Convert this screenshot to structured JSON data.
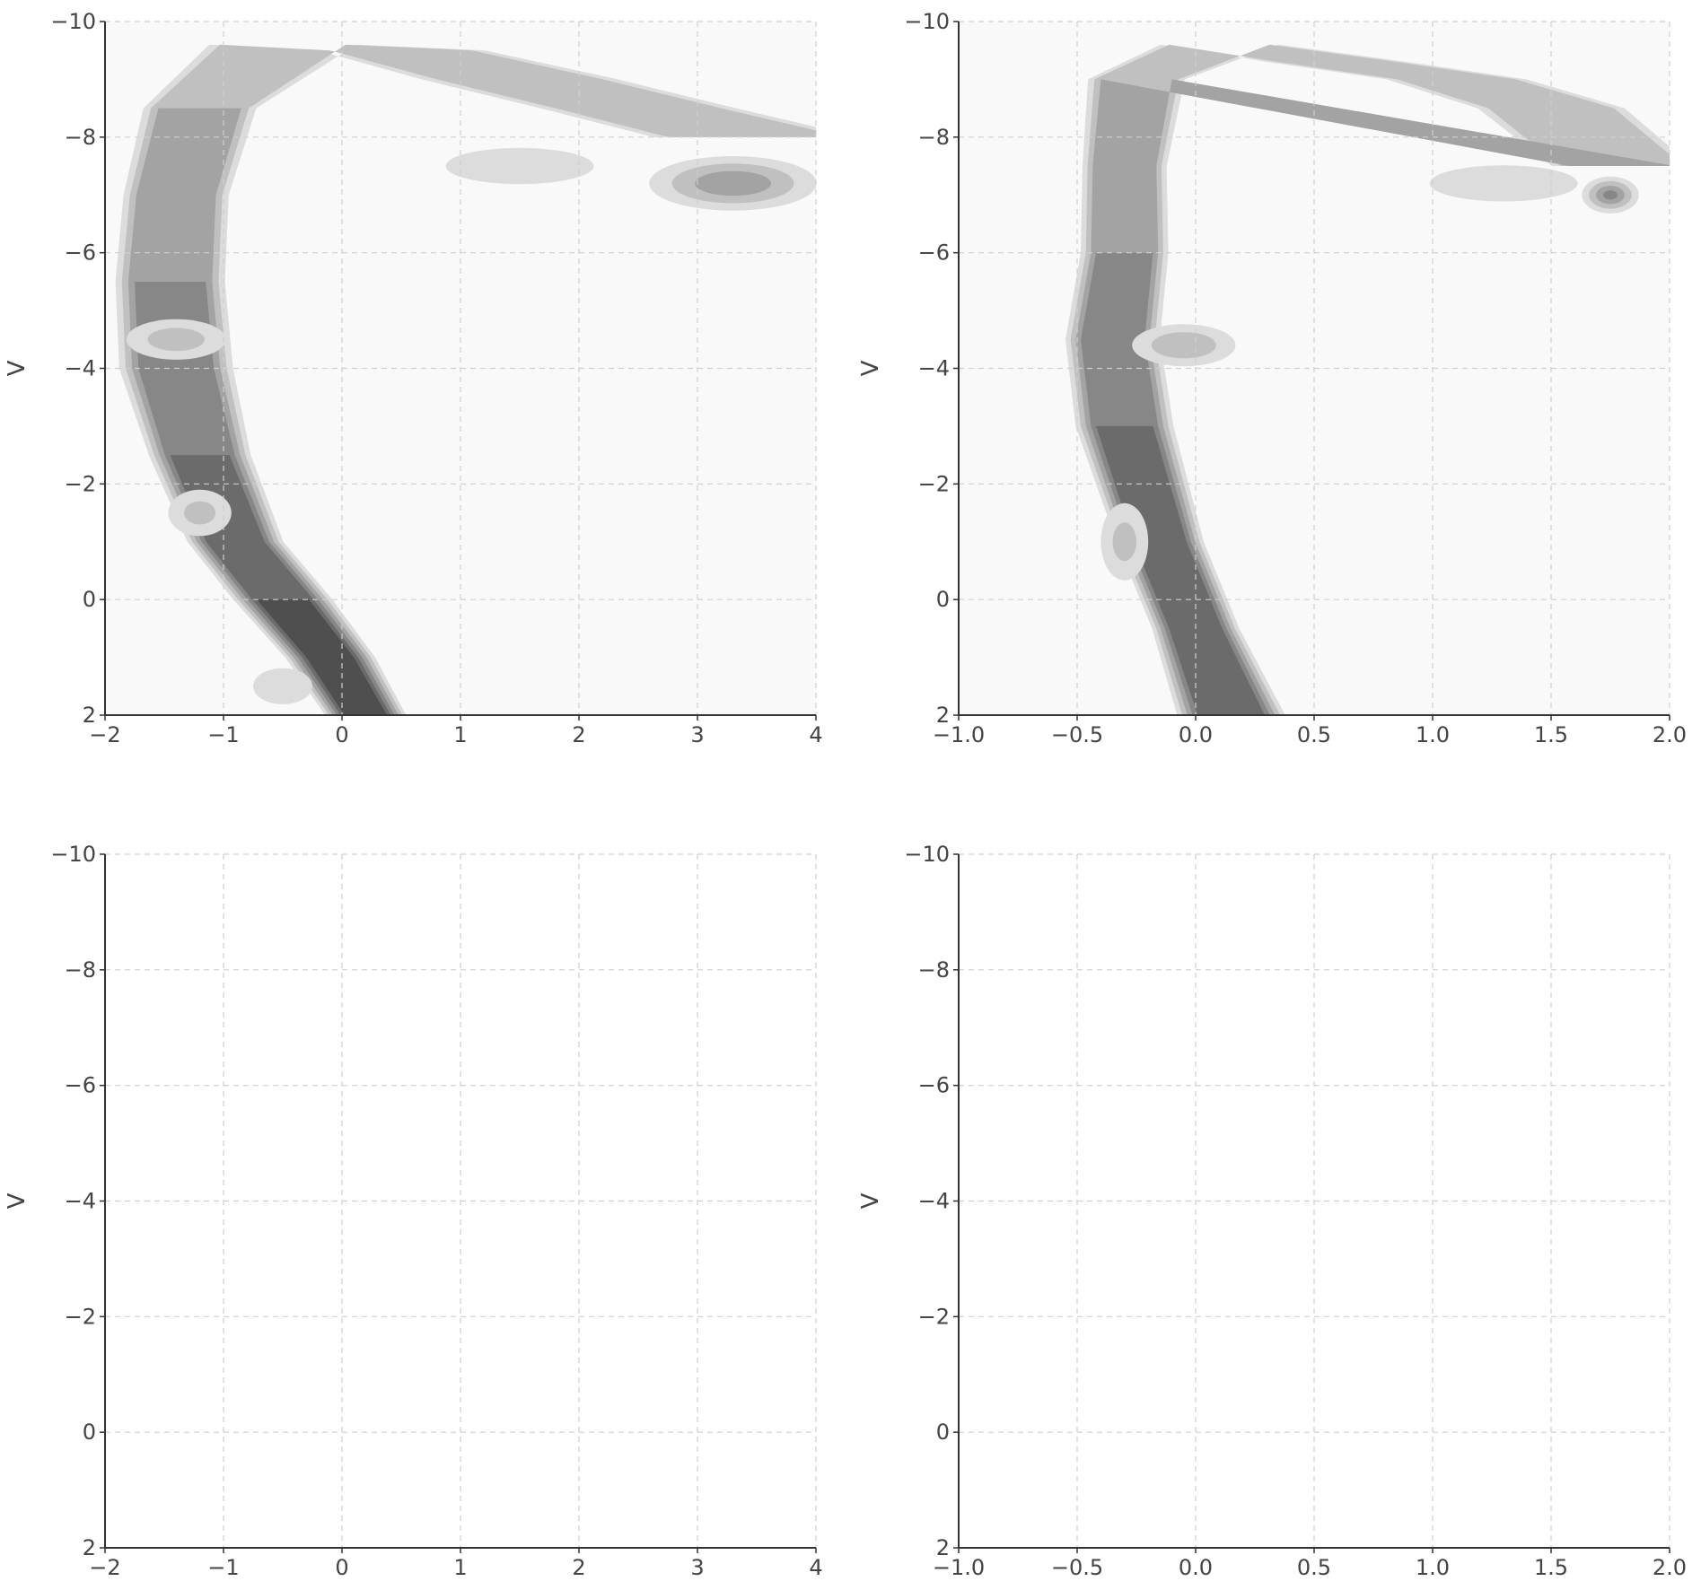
{
  "chart_data": [
    {
      "type": "heatmap",
      "panel": "top-left",
      "xlabel": "",
      "ylabel": "V",
      "xlim": [
        -2,
        4
      ],
      "ylim": [
        2,
        -10
      ],
      "x_ticks": [
        "−2",
        "−1",
        "0",
        "1",
        "2",
        "3",
        "4"
      ],
      "y_ticks": [
        "−10",
        "−8",
        "−6",
        "−4",
        "−2",
        "0",
        "2"
      ],
      "grid": true,
      "colormap": "greys",
      "density_path": [
        {
          "x": 0.2,
          "y": 2.0,
          "w": 0.18,
          "d": 0.9
        },
        {
          "x": -0.1,
          "y": 1.0,
          "w": 0.2,
          "d": 0.9
        },
        {
          "x": -0.5,
          "y": 0.0,
          "w": 0.22,
          "d": 0.9
        },
        {
          "x": -0.9,
          "y": -1.0,
          "w": 0.22,
          "d": 0.85
        },
        {
          "x": -1.2,
          "y": -2.5,
          "w": 0.25,
          "d": 0.75
        },
        {
          "x": -1.4,
          "y": -4.0,
          "w": 0.3,
          "d": 0.65
        },
        {
          "x": -1.45,
          "y": -5.5,
          "w": 0.3,
          "d": 0.6
        },
        {
          "x": -1.4,
          "y": -7.0,
          "w": 0.3,
          "d": 0.55
        },
        {
          "x": -1.2,
          "y": -8.5,
          "w": 0.35,
          "d": 0.45
        },
        {
          "x": -0.5,
          "y": -9.6,
          "w": 0.5,
          "d": 0.35
        },
        {
          "x": 0.5,
          "y": -9.5,
          "w": 0.6,
          "d": 0.3
        },
        {
          "x": 1.5,
          "y": -9.0,
          "w": 0.7,
          "d": 0.3
        },
        {
          "x": 2.5,
          "y": -8.5,
          "w": 0.7,
          "d": 0.3
        },
        {
          "x": 3.5,
          "y": -8.0,
          "w": 0.7,
          "d": 0.35
        }
      ],
      "density_blobs": [
        {
          "x": -1.4,
          "y": -4.5,
          "rx": 0.6,
          "ry": 0.5,
          "d": 0.35
        },
        {
          "x": -1.2,
          "y": -1.5,
          "rx": 0.4,
          "ry": 0.6,
          "d": 0.3
        },
        {
          "x": -0.5,
          "y": 1.5,
          "rx": 0.4,
          "ry": 0.5,
          "d": 0.25
        },
        {
          "x": 3.3,
          "y": -7.2,
          "rx": 0.9,
          "ry": 0.6,
          "d": 0.55
        },
        {
          "x": 1.5,
          "y": -7.5,
          "rx": 1.0,
          "ry": 0.5,
          "d": 0.25
        }
      ]
    },
    {
      "type": "heatmap",
      "panel": "top-right",
      "xlabel": "",
      "ylabel": "V",
      "xlim": [
        -1.0,
        2.0
      ],
      "ylim": [
        2,
        -10
      ],
      "x_ticks": [
        "−1.0",
        "−0.5",
        "0.0",
        "0.5",
        "1.0",
        "1.5",
        "2.0"
      ],
      "y_ticks": [
        "−10",
        "−8",
        "−6",
        "−4",
        "−2",
        "0",
        "2"
      ],
      "grid": true,
      "colormap": "greys",
      "density_path": [
        {
          "x": 0.15,
          "y": 2.0,
          "w": 0.12,
          "d": 0.9
        },
        {
          "x": 0.0,
          "y": 0.5,
          "w": 0.1,
          "d": 0.85
        },
        {
          "x": -0.15,
          "y": -1.0,
          "w": 0.1,
          "d": 0.85
        },
        {
          "x": -0.3,
          "y": -3.0,
          "w": 0.12,
          "d": 0.75
        },
        {
          "x": -0.35,
          "y": -4.5,
          "w": 0.12,
          "d": 0.7
        },
        {
          "x": -0.3,
          "y": -6.0,
          "w": 0.12,
          "d": 0.6
        },
        {
          "x": -0.3,
          "y": -7.5,
          "w": 0.12,
          "d": 0.55
        },
        {
          "x": -0.25,
          "y": -9.0,
          "w": 0.15,
          "d": 0.45
        },
        {
          "x": 0.1,
          "y": -9.6,
          "w": 0.2,
          "d": 0.35
        },
        {
          "x": 0.6,
          "y": -9.3,
          "w": 0.25,
          "d": 0.3
        },
        {
          "x": 1.1,
          "y": -9.0,
          "w": 0.25,
          "d": 0.3
        },
        {
          "x": 1.5,
          "y": -8.5,
          "w": 0.25,
          "d": 0.35
        },
        {
          "x": 1.8,
          "y": -7.5,
          "w": 0.2,
          "d": 0.55
        }
      ],
      "density_blobs": [
        {
          "x": -0.05,
          "y": -4.4,
          "rx": 0.3,
          "ry": 0.5,
          "d": 0.4
        },
        {
          "x": -0.3,
          "y": -1.0,
          "rx": 0.15,
          "ry": 1.0,
          "d": 0.3
        },
        {
          "x": 1.3,
          "y": -7.2,
          "rx": 0.5,
          "ry": 0.5,
          "d": 0.25
        },
        {
          "x": 1.75,
          "y": -7.0,
          "rx": 0.15,
          "ry": 0.4,
          "d": 0.6
        }
      ]
    },
    {
      "type": "heatmap",
      "panel": "bottom-left",
      "xlabel": "",
      "ylabel": "V",
      "xlim": [
        -2,
        4
      ],
      "ylim": [
        2,
        -10
      ],
      "x_ticks": [
        "−2",
        "−1",
        "0",
        "1",
        "2",
        "3",
        "4"
      ],
      "y_ticks": [
        "−10",
        "−8",
        "−6",
        "−4",
        "−2",
        "0",
        "2"
      ],
      "grid": true,
      "colormap": "greys",
      "density_path": [],
      "density_blobs": []
    },
    {
      "type": "heatmap",
      "panel": "bottom-right",
      "xlabel": "",
      "ylabel": "V",
      "xlim": [
        -1.0,
        2.0
      ],
      "ylim": [
        2,
        -10
      ],
      "x_ticks": [
        "−1.0",
        "−0.5",
        "0.0",
        "0.5",
        "1.0",
        "1.5",
        "2.0"
      ],
      "y_ticks": [
        "−10",
        "−8",
        "−6",
        "−4",
        "−2",
        "0",
        "2"
      ],
      "grid": true,
      "colormap": "greys",
      "density_path": [],
      "density_blobs": []
    }
  ]
}
